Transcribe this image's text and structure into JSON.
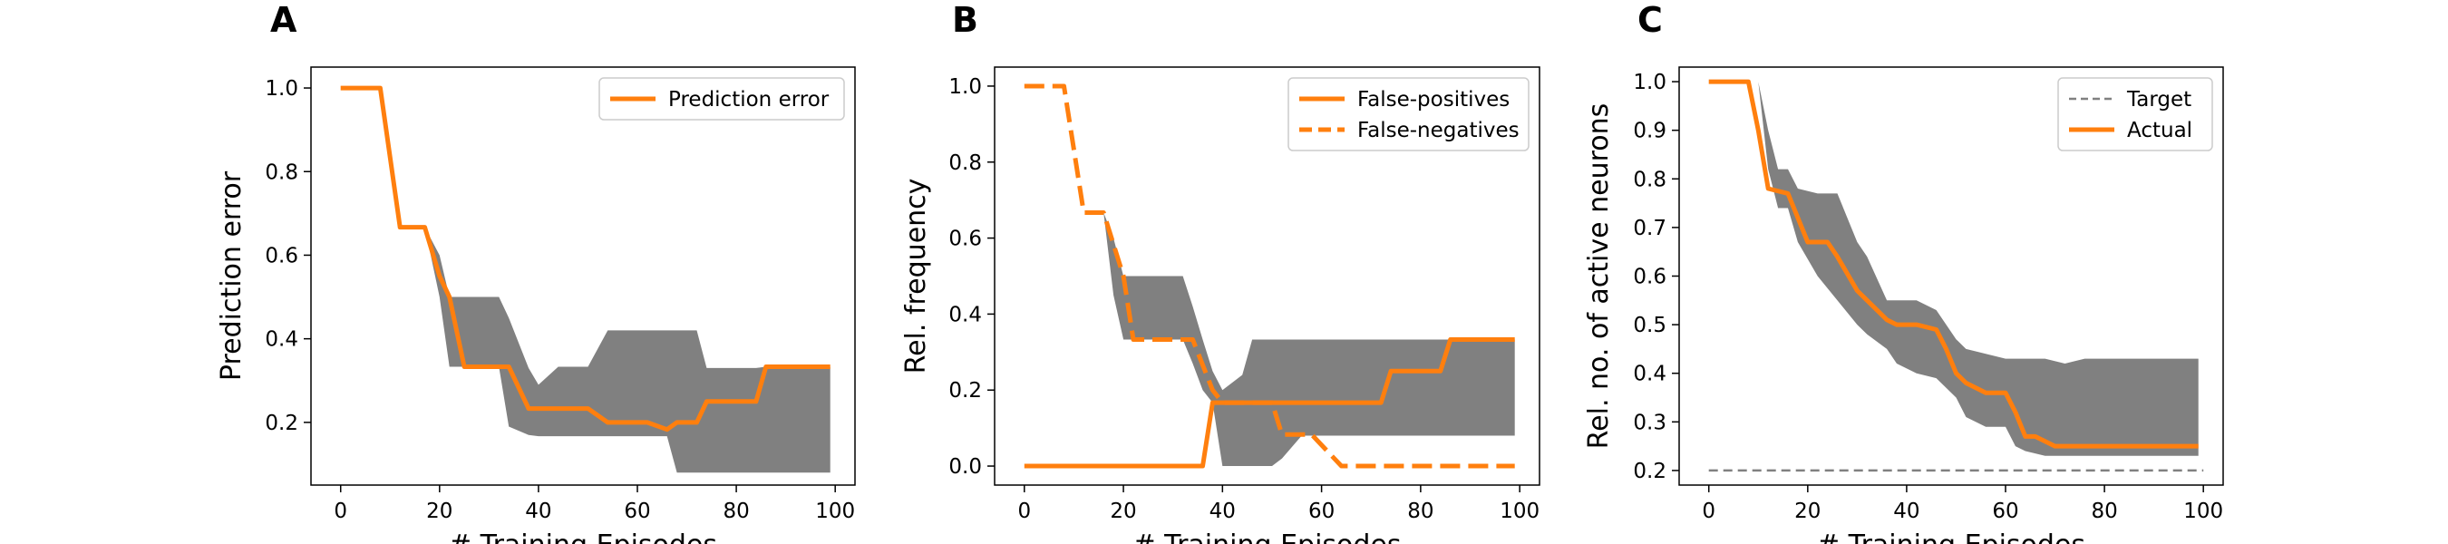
{
  "chart_data": [
    {
      "type": "line",
      "panel": "A",
      "xlabel": "# Training Episodes",
      "ylabel": "Prediction error",
      "xlim": [
        -6,
        104
      ],
      "ylim": [
        0.05,
        1.05
      ],
      "xticks": [
        0,
        20,
        40,
        60,
        80,
        100
      ],
      "yticks": [
        0.2,
        0.4,
        0.6,
        0.8,
        1.0
      ],
      "xtick_labels": [
        "0",
        "20",
        "40",
        "60",
        "80",
        "100"
      ],
      "ytick_labels": [
        "0.2",
        "0.4",
        "0.6",
        "0.8",
        "1.0"
      ],
      "legend_position": "top-right",
      "band_color": "#808080",
      "series": [
        {
          "name": "Prediction error",
          "color": "#ff7f0e",
          "style": "solid",
          "x": [
            0,
            8,
            12,
            17,
            20,
            22,
            25,
            34,
            38,
            50,
            54,
            62,
            66,
            68,
            72,
            74,
            84,
            86,
            99
          ],
          "y": [
            1.0,
            1.0,
            0.667,
            0.667,
            0.55,
            0.5,
            0.333,
            0.333,
            0.233,
            0.233,
            0.2,
            0.2,
            0.183,
            0.2,
            0.2,
            0.25,
            0.25,
            0.333,
            0.333
          ]
        }
      ],
      "band": {
        "x": [
          17,
          20,
          22,
          25,
          32,
          34,
          38,
          40,
          44,
          50,
          54,
          62,
          66,
          68,
          72,
          74,
          84,
          86,
          99
        ],
        "upper": [
          0.667,
          0.6,
          0.5,
          0.5,
          0.5,
          0.45,
          0.33,
          0.29,
          0.333,
          0.333,
          0.42,
          0.42,
          0.42,
          0.42,
          0.42,
          0.33,
          0.33,
          0.333,
          0.333
        ],
        "lower": [
          0.667,
          0.5,
          0.333,
          0.333,
          0.333,
          0.19,
          0.17,
          0.167,
          0.167,
          0.167,
          0.167,
          0.167,
          0.167,
          0.08,
          0.08,
          0.08,
          0.08,
          0.08,
          0.08
        ]
      }
    },
    {
      "type": "line",
      "panel": "B",
      "xlabel": "# Training Episodes",
      "ylabel": "Rel. frequency",
      "xlim": [
        -6,
        104
      ],
      "ylim": [
        -0.05,
        1.05
      ],
      "xticks": [
        0,
        20,
        40,
        60,
        80,
        100
      ],
      "yticks": [
        0.0,
        0.2,
        0.4,
        0.6,
        0.8,
        1.0
      ],
      "xtick_labels": [
        "0",
        "20",
        "40",
        "60",
        "80",
        "100"
      ],
      "ytick_labels": [
        "0.0",
        "0.2",
        "0.4",
        "0.6",
        "0.8",
        "1.0"
      ],
      "legend_position": "top-right",
      "band_color": "#808080",
      "series": [
        {
          "name": "False-positives",
          "color": "#ff7f0e",
          "style": "solid",
          "x": [
            0,
            36,
            38,
            72,
            74,
            84,
            86,
            99
          ],
          "y": [
            0.0,
            0.0,
            0.167,
            0.167,
            0.25,
            0.25,
            0.333,
            0.333
          ]
        },
        {
          "name": "False-negatives",
          "color": "#ff7f0e",
          "style": "dashed",
          "x": [
            0,
            8,
            12,
            16,
            20,
            22,
            26,
            34,
            38,
            40,
            50,
            52,
            58,
            64,
            66,
            99
          ],
          "y": [
            1.0,
            1.0,
            0.667,
            0.667,
            0.5,
            0.333,
            0.333,
            0.333,
            0.2,
            0.167,
            0.167,
            0.083,
            0.083,
            0.0,
            0.0,
            0.0
          ]
        }
      ],
      "band": {
        "x": [
          16,
          18,
          20,
          26,
          32,
          34,
          36,
          38,
          40,
          44,
          46,
          50,
          52,
          56,
          64,
          86,
          99
        ],
        "upper": [
          0.667,
          0.6,
          0.5,
          0.5,
          0.5,
          0.42,
          0.333,
          0.25,
          0.2,
          0.24,
          0.333,
          0.333,
          0.333,
          0.333,
          0.333,
          0.333,
          0.333
        ],
        "lower": [
          0.667,
          0.45,
          0.333,
          0.333,
          0.333,
          0.27,
          0.2,
          0.167,
          0.0,
          0.0,
          0.0,
          0.0,
          0.02,
          0.08,
          0.08,
          0.08,
          0.08
        ]
      }
    },
    {
      "type": "line",
      "panel": "C",
      "xlabel": "# Training Episodes",
      "ylabel": "Rel. no. of active neurons",
      "xlim": [
        -6,
        104
      ],
      "ylim": [
        0.17,
        1.03
      ],
      "xticks": [
        0,
        20,
        40,
        60,
        80,
        100
      ],
      "yticks": [
        0.2,
        0.3,
        0.4,
        0.5,
        0.6,
        0.7,
        0.8,
        0.9,
        1.0
      ],
      "xtick_labels": [
        "0",
        "20",
        "40",
        "60",
        "80",
        "100"
      ],
      "ytick_labels": [
        "0.2",
        "0.3",
        "0.4",
        "0.5",
        "0.6",
        "0.7",
        "0.8",
        "0.9",
        "1.0"
      ],
      "legend_position": "top-right",
      "band_color": "#808080",
      "series": [
        {
          "name": "Target",
          "color": "#808080",
          "style": "dashed",
          "x": [
            0,
            100
          ],
          "y": [
            0.2,
            0.2
          ]
        },
        {
          "name": "Actual",
          "color": "#ff7f0e",
          "style": "solid",
          "x": [
            0,
            8,
            10,
            12,
            16,
            18,
            20,
            24,
            26,
            30,
            32,
            36,
            38,
            42,
            46,
            48,
            50,
            52,
            56,
            60,
            62,
            64,
            66,
            70,
            74,
            99
          ],
          "y": [
            1.0,
            1.0,
            0.9,
            0.78,
            0.77,
            0.72,
            0.67,
            0.67,
            0.64,
            0.57,
            0.55,
            0.51,
            0.5,
            0.5,
            0.49,
            0.45,
            0.4,
            0.38,
            0.36,
            0.36,
            0.32,
            0.27,
            0.27,
            0.25,
            0.25,
            0.25
          ]
        }
      ],
      "band": {
        "x": [
          0,
          10,
          12,
          14,
          16,
          18,
          22,
          26,
          30,
          32,
          36,
          38,
          42,
          46,
          50,
          52,
          56,
          60,
          62,
          64,
          68,
          72,
          76,
          78,
          99
        ],
        "upper": [
          1.0,
          1.0,
          0.9,
          0.82,
          0.82,
          0.78,
          0.77,
          0.77,
          0.67,
          0.64,
          0.55,
          0.55,
          0.55,
          0.53,
          0.47,
          0.45,
          0.44,
          0.43,
          0.43,
          0.43,
          0.43,
          0.42,
          0.43,
          0.43,
          0.43
        ],
        "lower": [
          1.0,
          1.0,
          0.82,
          0.74,
          0.74,
          0.67,
          0.6,
          0.55,
          0.5,
          0.48,
          0.45,
          0.42,
          0.4,
          0.39,
          0.35,
          0.31,
          0.29,
          0.29,
          0.25,
          0.24,
          0.23,
          0.23,
          0.23,
          0.23,
          0.23
        ]
      }
    }
  ]
}
